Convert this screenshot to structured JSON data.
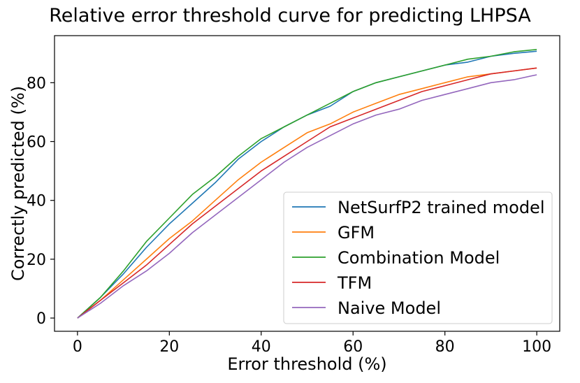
{
  "chart_data": {
    "type": "line",
    "title": "Relative error threshold curve for predicting LHPSA",
    "xlabel": "Error threshold (%)",
    "ylabel": "Correctly predicted (%)",
    "xlim": [
      -5,
      105
    ],
    "ylim": [
      -4.5,
      96
    ],
    "xticks": [
      0,
      20,
      40,
      60,
      80,
      100
    ],
    "yticks": [
      0,
      20,
      40,
      60,
      80
    ],
    "grid": false,
    "legend_position": "lower-right",
    "x": [
      0,
      5,
      10,
      15,
      20,
      25,
      30,
      35,
      40,
      45,
      50,
      55,
      60,
      65,
      70,
      75,
      80,
      85,
      90,
      95,
      100
    ],
    "series": [
      {
        "name": "NetSurfP2 trained model",
        "color": "#1f77b4",
        "values": [
          0,
          7,
          15,
          24,
          32,
          39,
          46,
          54,
          60,
          65,
          69,
          72,
          77,
          80,
          82,
          84,
          86,
          87,
          89,
          90,
          90.7
        ]
      },
      {
        "name": "GFM",
        "color": "#ff7f0e",
        "values": [
          0,
          6,
          13,
          20,
          27,
          33,
          40,
          47,
          53,
          58,
          63,
          66,
          70,
          73,
          76,
          78,
          80,
          82,
          83,
          84,
          85
        ]
      },
      {
        "name": "Combination Model",
        "color": "#2ca02c",
        "values": [
          0,
          7,
          16,
          26,
          34,
          42,
          48,
          55,
          61,
          65,
          69,
          73,
          77,
          80,
          82,
          84,
          86,
          88,
          89,
          90.5,
          91.3
        ]
      },
      {
        "name": "TFM",
        "color": "#d62728",
        "values": [
          0,
          6,
          12,
          18,
          25,
          32,
          38,
          44,
          50,
          55,
          60,
          65,
          68,
          71,
          74,
          77,
          79,
          81,
          83,
          84,
          85
        ]
      },
      {
        "name": "Naive Model",
        "color": "#9467bd",
        "values": [
          0,
          5,
          11,
          16,
          22,
          29,
          35,
          41,
          47,
          53,
          58,
          62,
          66,
          69,
          71,
          74,
          76,
          78,
          80,
          81,
          82.7
        ]
      }
    ]
  }
}
